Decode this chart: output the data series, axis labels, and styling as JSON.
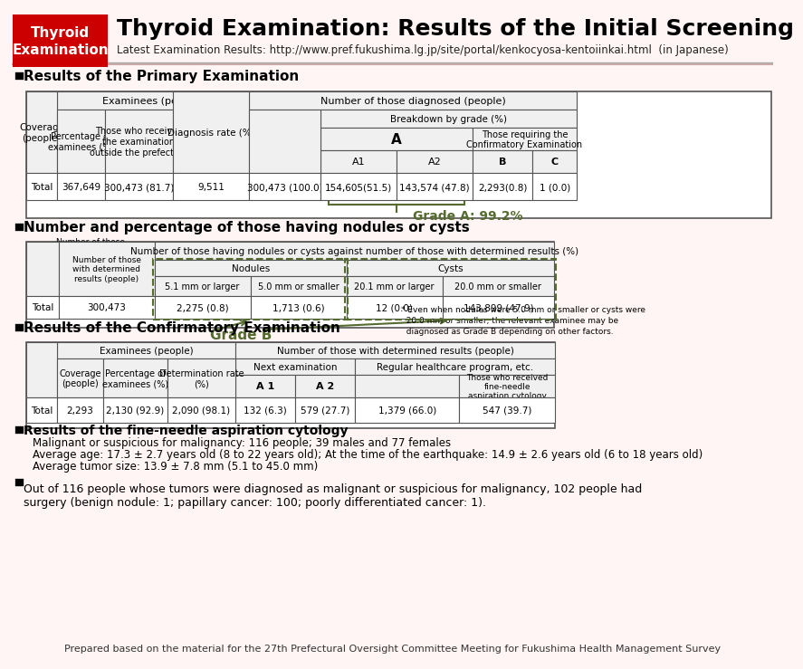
{
  "title": "Thyroid Examination: Results of the Initial Screening",
  "subtitle": "Latest Examination Results: http://www.pref.fukushima.lg.jp/site/portal/kenkocyosa-kentoiinkai.html  (in Japanese)",
  "header_label": "Thyroid\nExamination",
  "bg_color": "#fff0f0",
  "header_bg": "#cc0000",
  "section1_title": "Results of the Primary Examination",
  "primary_table": {
    "headers_row1": [
      "",
      "Coverage\n(people)",
      "Examinees (people)",
      "",
      "Diagnosis rate (%)",
      "Number of those diagnosed (people)",
      "",
      "",
      ""
    ],
    "examinees_sub": [
      "Percentage of\nexaminees (%)",
      "Those who received\nthe examination\noutside the prefecture"
    ],
    "diagnosed_sub": [
      "Breakdown by grade (%)"
    ],
    "grade_a_sub": [
      "A",
      "Those requiring the\nConfirmatory Examination"
    ],
    "a_sub": [
      "A1",
      "A2",
      "B",
      "C"
    ],
    "data_row": [
      "Total",
      "367,649",
      "300,473 (81.7)",
      "9,511",
      "300,473 (100.0)",
      "154,605(51.5)",
      "143,574 (47.8)",
      "2,293(0.8)",
      "1 (0.0)"
    ]
  },
  "grade_a_label": "Grade A: 99.2%",
  "section2_title": "Number and percentage of those having nodules or cysts",
  "nodules_table": {
    "header1": "Number of those\nwith determined\nresults (people)",
    "header2": "Number of those having nodules or cysts against number of those with determined results (%)",
    "nodules_label": "Nodules",
    "cysts_label": "Cysts",
    "sub_headers": [
      "5.1 mm or larger",
      "5.0 mm or smaller",
      "20.1 mm or larger",
      "20.0 mm or smaller"
    ],
    "data_row": [
      "Total",
      "300,473",
      "2,275 (0.8)",
      "1,713 (0.6)",
      "12 (0.0)",
      "143,899 (47.9)"
    ]
  },
  "grade_b_label": "Grade B",
  "footnote": "* Even when nodules were 5.0 mm or smaller or cysts were\n  20.0 mm or smaller, the relevant examinee may be\n  diagnosed as Grade B depending on other factors.",
  "section3_title": "Results of the Confirmatory Examination",
  "confirmatory_table": {
    "examinees_label": "Examinees (people)",
    "determined_label": "Number of those with determined results (people)",
    "next_exam_label": "Next examination",
    "regular_label": "Regular healthcare program, etc.",
    "sub_headers": [
      "Coverage\n(people)",
      "Percentage of\nexaminees (%)",
      "Determination rate\n(%)",
      "A 1",
      "A 2",
      "",
      "Those who received\nfine-needle\naspiration cytology"
    ],
    "data_row": [
      "Total",
      "2,293",
      "2,130 (92.9)",
      "2,090 (98.1)",
      "132 (6.3)",
      "579 (27.7)",
      "1,379 (66.0)",
      "547 (39.7)"
    ]
  },
  "bullet4_text": "Results of the fine-needle aspiration cytology",
  "bullet4_sub": [
    "Malignant or suspicious for malignancy: 116 people; 39 males and 77 females",
    "Average age: 17.3 ± 2.7 years old (8 to 22 years old); At the time of the earthquake: 14.9 ± 2.6 years old (6 to 18 years old)",
    "Average tumor size: 13.9 ± 7.8 mm (5.1 to 45.0 mm)"
  ],
  "bullet5_text": "Out of 116 people whose tumors were diagnosed as malignant or suspicious for malignancy, 102 people had\nsurgery (benign nodule: 1; papillary cancer: 100; poorly differentiated cancer: 1).",
  "footer": "Prepared based on the material for the 27th Prefectural Oversight Committee Meeting for Fukushima Health Management Survey"
}
